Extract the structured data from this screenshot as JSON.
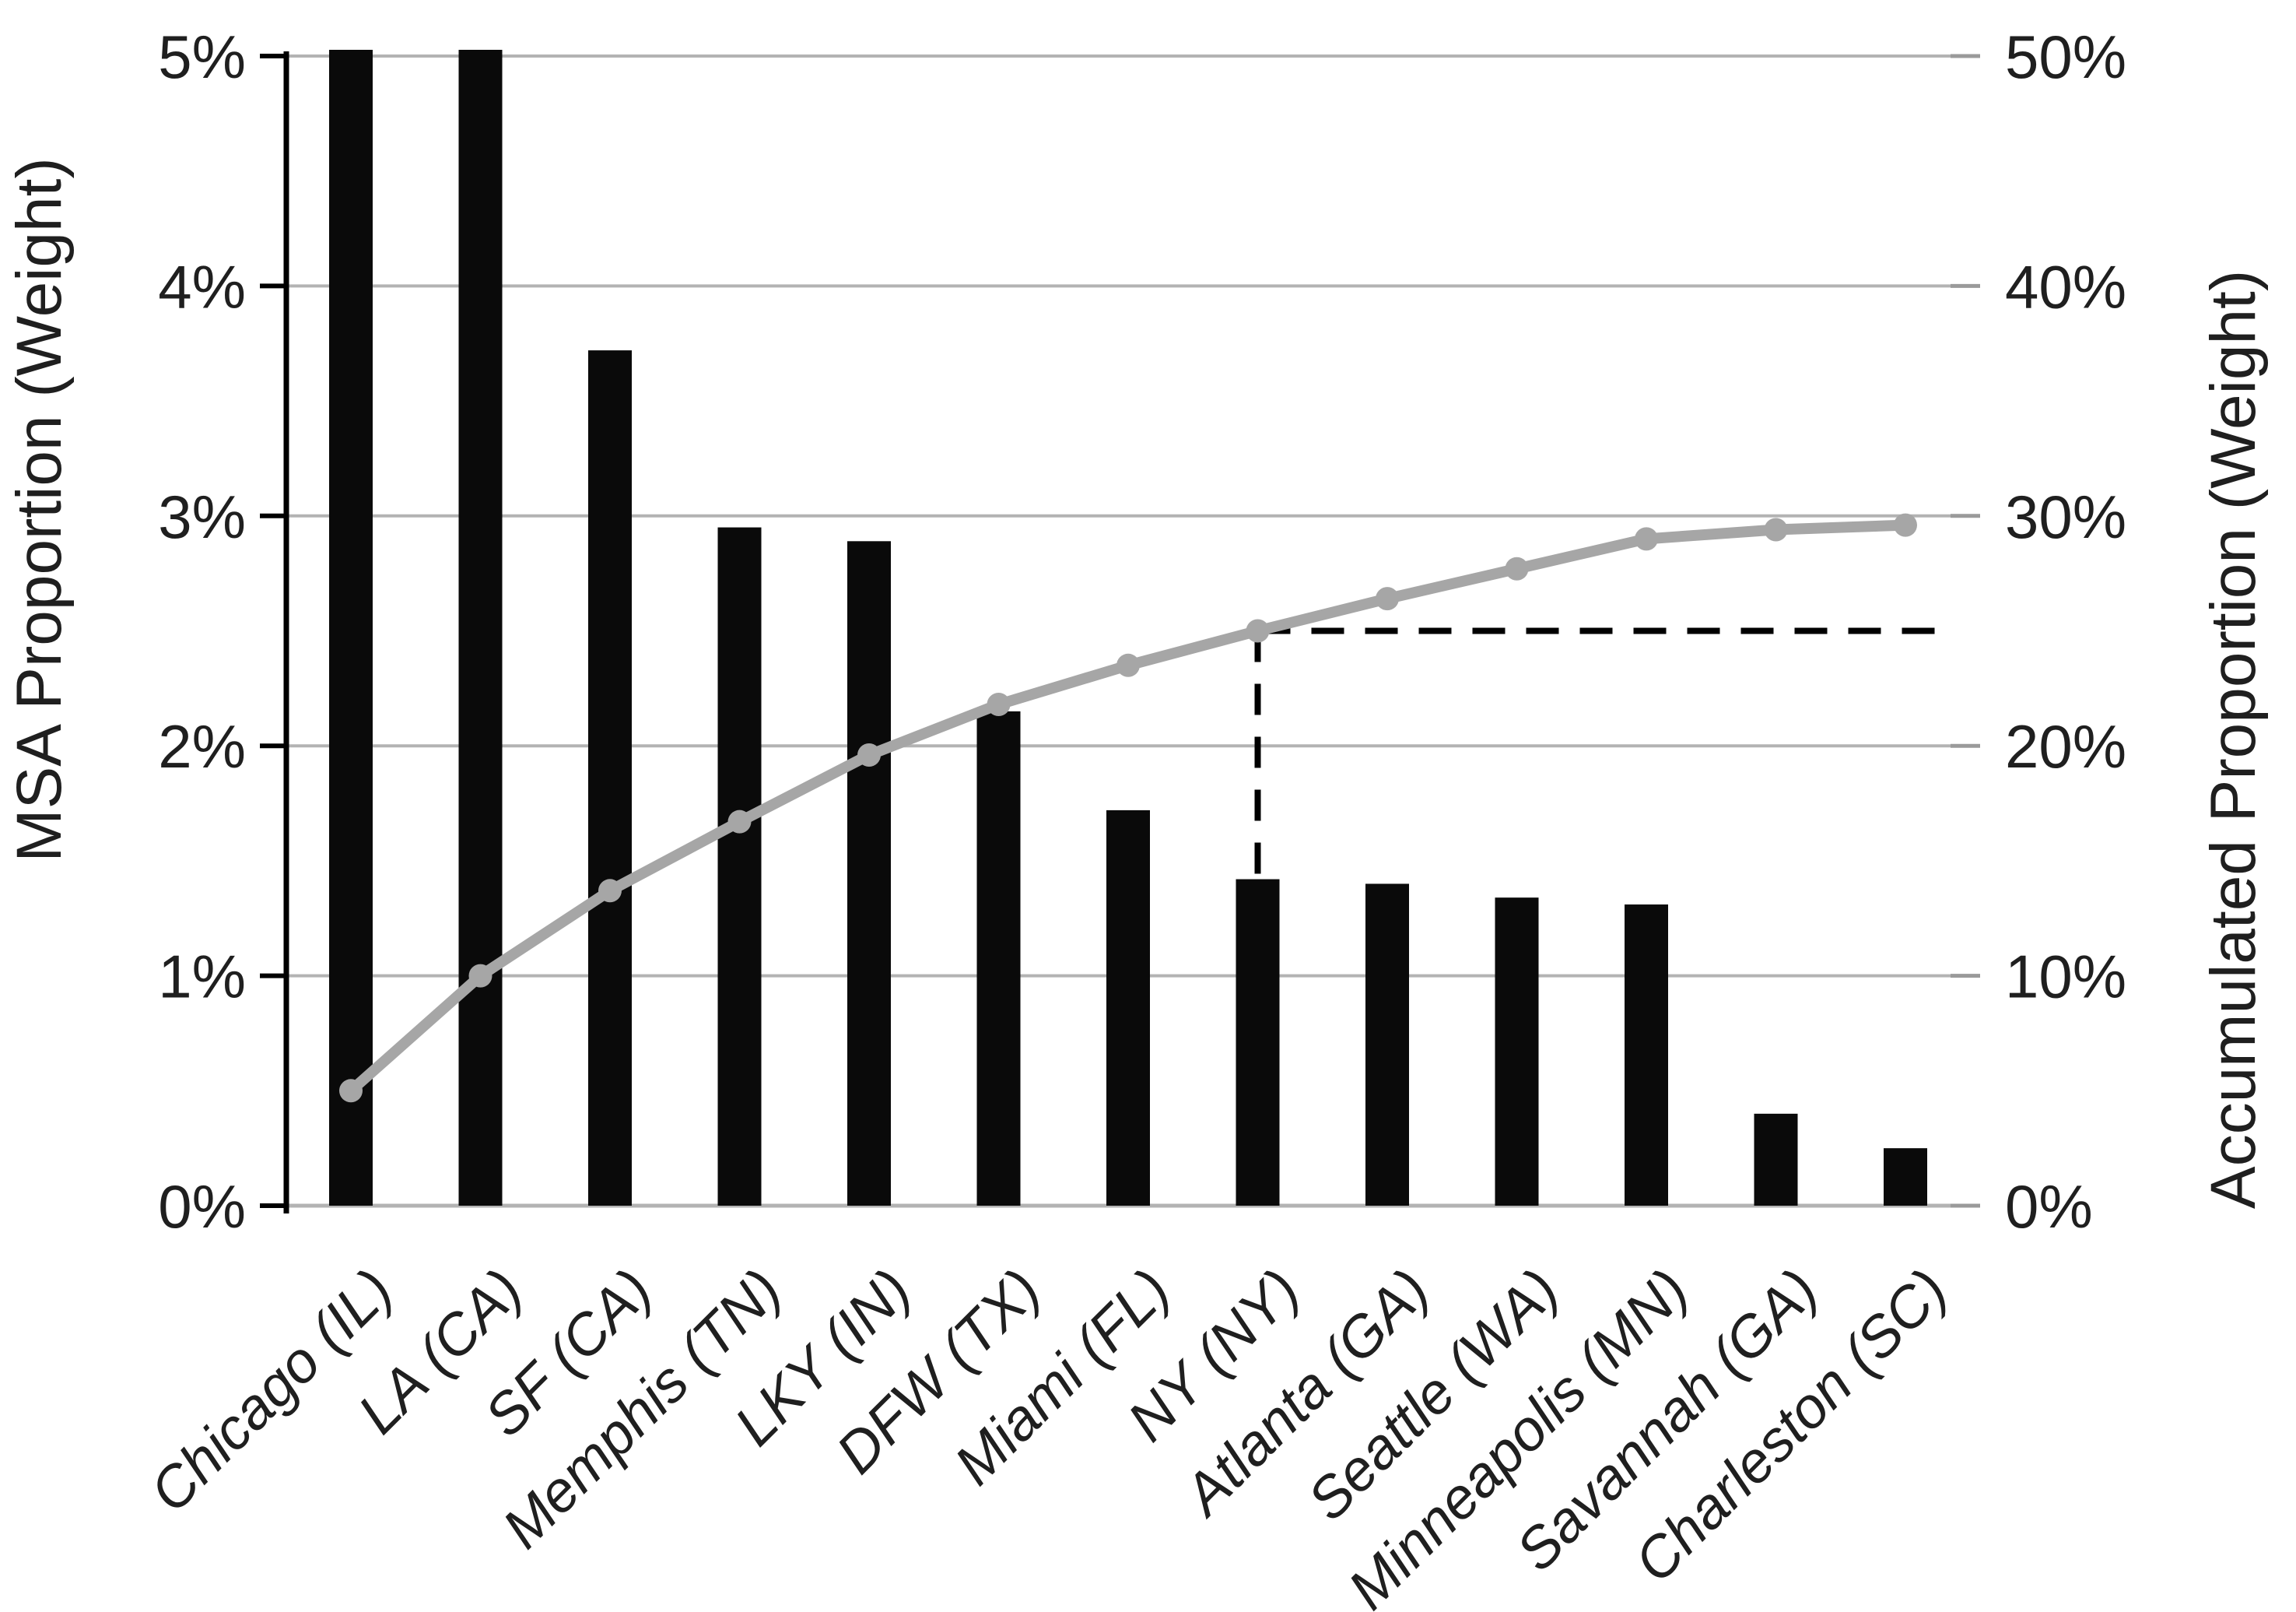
{
  "page": {
    "background": "#ffffff"
  },
  "chart_data": {
    "type": "bar",
    "subtype": "pareto-dual-axis",
    "title": "",
    "grid": true,
    "legend": false,
    "categories": [
      "Chicago (IL)",
      "LA (CA)",
      "SF (CA)",
      "Memphis (TN)",
      "LKY (IN)",
      "DFW (TX)",
      "Miami (FL)",
      "NY (NY)",
      "Atlanta (GA)",
      "Seattle (WA)",
      "Minneapolis (MN)",
      "Savannah (GA)",
      "Charleston (SC)"
    ],
    "series": [
      {
        "name": "MSA Proportion (Weight)",
        "type": "bar",
        "axis": "left",
        "color": "#0a0a0a",
        "values": [
          5.2,
          5.2,
          3.72,
          2.95,
          2.89,
          2.15,
          1.72,
          1.42,
          1.4,
          1.34,
          1.31,
          0.4,
          0.25
        ],
        "clipped_at_axis_max": [
          true,
          true,
          false,
          false,
          false,
          false,
          false,
          false,
          false,
          false,
          false,
          false,
          false
        ]
      },
      {
        "name": "Accumulated Proportion (Weight)",
        "type": "line",
        "axis": "right",
        "color": "#a6a6a6",
        "values": [
          5.0,
          10.0,
          13.7,
          16.7,
          19.6,
          21.8,
          23.5,
          25.0,
          26.4,
          27.7,
          29.0,
          29.4,
          29.6
        ]
      }
    ],
    "left_axis": {
      "label": "MSA Proportion (Weight)",
      "unit": "%",
      "range": [
        0,
        5
      ],
      "tick_labels": [
        "0%",
        "1%",
        "2%",
        "3%",
        "4%",
        "5%"
      ]
    },
    "right_axis": {
      "label": "Accumulated Proportion (Weight)",
      "unit": "%",
      "range": [
        0,
        50
      ],
      "tick_labels": [
        "0%",
        "10%",
        "20%",
        "30%",
        "40%",
        "50%"
      ]
    },
    "annotation": {
      "type": "dashed-reference-lines",
      "category": "NY (NY)",
      "right_axis_value": 25.0,
      "description": "horizontal dashed line at 25% from the NY (NY) cumulative point to the right axis; vertical dashed line from the point down to the NY (NY) bar top",
      "color": "#000000"
    },
    "colors": {
      "bar": "#0a0a0a",
      "cumulative_line": "#a6a6a6",
      "gridline": "#b3b3b3",
      "axis_line": "#000000",
      "dashed_reference": "#000000"
    }
  }
}
